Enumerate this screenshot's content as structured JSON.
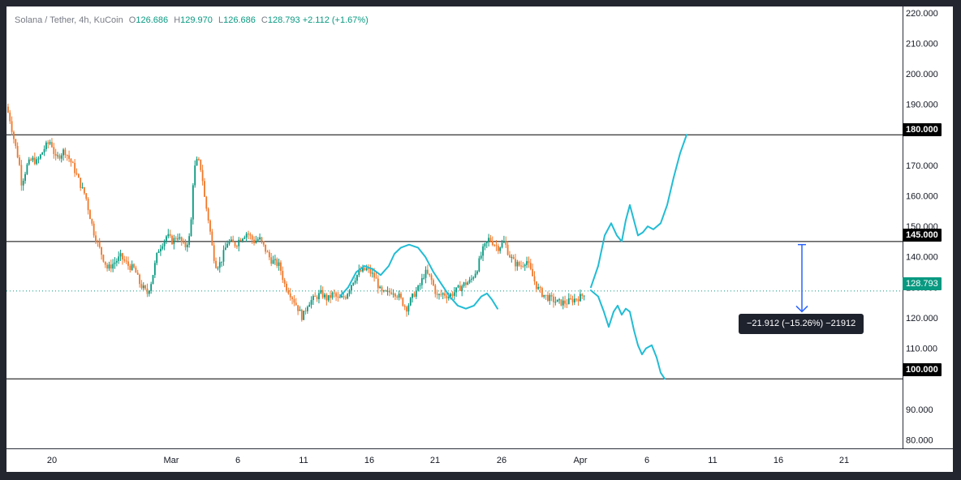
{
  "header": {
    "symbol": "Solana / Tether, 4h, KuCoin",
    "open_label": "O",
    "open": "126.686",
    "high_label": "H",
    "high": "129.970",
    "low_label": "L",
    "low": "126.686",
    "close_label": "C",
    "close": "128.793",
    "change": "+2.112 (+1.67%)"
  },
  "colors": {
    "up": "#089981",
    "down": "#f0782a",
    "projection": "#22bcd4",
    "level_line": "#000000",
    "current_price": "#089981",
    "measure": "#2962ff"
  },
  "price_tags": {
    "level_180": "180.000",
    "level_145": "145.000",
    "level_100": "100.000",
    "current": "128.793"
  },
  "measure": {
    "label": "−21.912 (−15.26%) −21912"
  },
  "chart_data": {
    "type": "candlestick",
    "timeframe": "4h",
    "y_axis": {
      "ticks": [
        "220.000",
        "210.000",
        "200.000",
        "190.000",
        "180.000",
        "170.000",
        "160.000",
        "150.000",
        "140.000",
        "130.000",
        "120.000",
        "110.000",
        "100.000",
        "90.000",
        "80.000"
      ],
      "range": [
        74,
        221
      ]
    },
    "x_axis": {
      "ticks": [
        "20",
        "Mar",
        "6",
        "11",
        "16",
        "21",
        "26",
        "Apr",
        "6",
        "11",
        "16",
        "21"
      ]
    },
    "horizontal_levels": [
      180,
      145,
      100
    ],
    "current_price": 128.793,
    "price_anchors": [
      [
        0,
        190
      ],
      [
        5,
        186
      ],
      [
        11,
        178
      ],
      [
        17,
        171
      ],
      [
        20,
        164
      ],
      [
        27,
        170
      ],
      [
        33,
        172
      ],
      [
        39,
        171
      ],
      [
        49,
        176
      ],
      [
        56,
        178
      ],
      [
        62,
        172
      ],
      [
        73,
        175
      ],
      [
        83,
        170
      ],
      [
        95,
        162
      ],
      [
        99,
        160
      ],
      [
        102,
        156
      ],
      [
        109,
        148
      ],
      [
        117,
        142
      ],
      [
        126,
        136
      ],
      [
        134,
        138
      ],
      [
        142,
        140
      ],
      [
        152,
        137
      ],
      [
        159,
        136
      ],
      [
        166,
        131
      ],
      [
        175,
        128
      ],
      [
        180,
        132
      ],
      [
        188,
        142
      ],
      [
        199,
        147
      ],
      [
        206,
        145
      ],
      [
        212,
        147
      ],
      [
        221,
        143
      ],
      [
        228,
        147
      ],
      [
        232,
        168
      ],
      [
        237,
        172
      ],
      [
        242,
        168
      ],
      [
        245,
        160
      ],
      [
        251,
        151
      ],
      [
        256,
        141
      ],
      [
        260,
        137
      ],
      [
        265,
        138
      ],
      [
        274,
        145
      ],
      [
        284,
        144
      ],
      [
        289,
        146
      ],
      [
        298,
        148
      ],
      [
        306,
        145
      ],
      [
        313,
        146
      ],
      [
        319,
        143
      ],
      [
        327,
        139
      ],
      [
        333,
        138
      ],
      [
        338,
        137
      ],
      [
        344,
        131
      ],
      [
        351,
        128
      ],
      [
        359,
        124
      ],
      [
        366,
        120
      ],
      [
        373,
        125
      ],
      [
        379,
        126
      ],
      [
        389,
        128
      ],
      [
        397,
        126
      ],
      [
        404,
        128
      ],
      [
        410,
        126
      ],
      [
        419,
        127
      ],
      [
        428,
        132
      ],
      [
        436,
        135
      ],
      [
        446,
        136
      ],
      [
        456,
        133
      ],
      [
        463,
        128
      ],
      [
        471,
        128
      ],
      [
        477,
        129
      ],
      [
        485,
        127
      ],
      [
        494,
        123
      ],
      [
        504,
        128
      ],
      [
        510,
        130
      ],
      [
        517,
        135
      ],
      [
        524,
        133
      ],
      [
        532,
        127
      ],
      [
        540,
        128
      ],
      [
        546,
        127
      ],
      [
        556,
        129
      ],
      [
        565,
        131
      ],
      [
        573,
        132
      ],
      [
        581,
        136
      ],
      [
        588,
        142
      ],
      [
        596,
        146
      ],
      [
        607,
        143
      ],
      [
        615,
        145
      ],
      [
        620,
        141
      ],
      [
        627,
        138
      ],
      [
        635,
        137
      ],
      [
        642,
        139
      ],
      [
        649,
        134
      ],
      [
        655,
        130
      ],
      [
        661,
        128
      ],
      [
        666,
        127
      ],
      [
        673,
        126
      ],
      [
        681,
        125
      ],
      [
        691,
        125
      ],
      [
        700,
        126
      ],
      [
        710,
        127
      ],
      [
        715,
        129
      ]
    ],
    "projection_paths": [
      {
        "label": "",
        "points": [
          [
            411,
            127
          ],
          [
            421,
            130
          ],
          [
            431,
            135
          ],
          [
            441,
            137
          ],
          [
            451,
            136
          ],
          [
            461,
            134
          ],
          [
            471,
            137
          ],
          [
            478,
            141
          ],
          [
            486,
            143
          ],
          [
            496,
            144
          ],
          [
            507,
            143
          ],
          [
            516,
            140
          ],
          [
            526,
            135
          ],
          [
            536,
            131
          ],
          [
            546,
            127
          ],
          [
            556,
            124
          ],
          [
            566,
            123
          ],
          [
            576,
            124
          ],
          [
            585,
            127
          ],
          [
            592,
            128
          ],
          [
            598,
            126
          ],
          [
            605,
            123
          ]
        ]
      },
      {
        "label": "",
        "points": [
          [
            720,
            130
          ],
          [
            729,
            137
          ],
          [
            737,
            147
          ],
          [
            745,
            151
          ],
          [
            752,
            147
          ],
          [
            758,
            145
          ],
          [
            763,
            152
          ],
          [
            768,
            157
          ],
          [
            773,
            152
          ],
          [
            778,
            147
          ],
          [
            784,
            148
          ],
          [
            790,
            150
          ],
          [
            797,
            149
          ],
          [
            806,
            151
          ],
          [
            814,
            157
          ],
          [
            822,
            166
          ],
          [
            830,
            174
          ],
          [
            838,
            180
          ]
        ]
      },
      {
        "label": "",
        "points": [
          [
            720,
            129
          ],
          [
            729,
            127
          ],
          [
            736,
            122
          ],
          [
            742,
            117
          ],
          [
            748,
            122
          ],
          [
            753,
            124
          ],
          [
            758,
            121
          ],
          [
            763,
            123
          ],
          [
            768,
            122
          ],
          [
            773,
            116
          ],
          [
            778,
            111
          ],
          [
            783,
            108
          ],
          [
            788,
            110
          ],
          [
            795,
            111
          ],
          [
            801,
            107
          ],
          [
            806,
            102
          ],
          [
            811,
            100
          ]
        ]
      }
    ],
    "measure_arrow": {
      "from": 144,
      "to": 122,
      "change": -21.912,
      "percent": -15.26
    }
  }
}
